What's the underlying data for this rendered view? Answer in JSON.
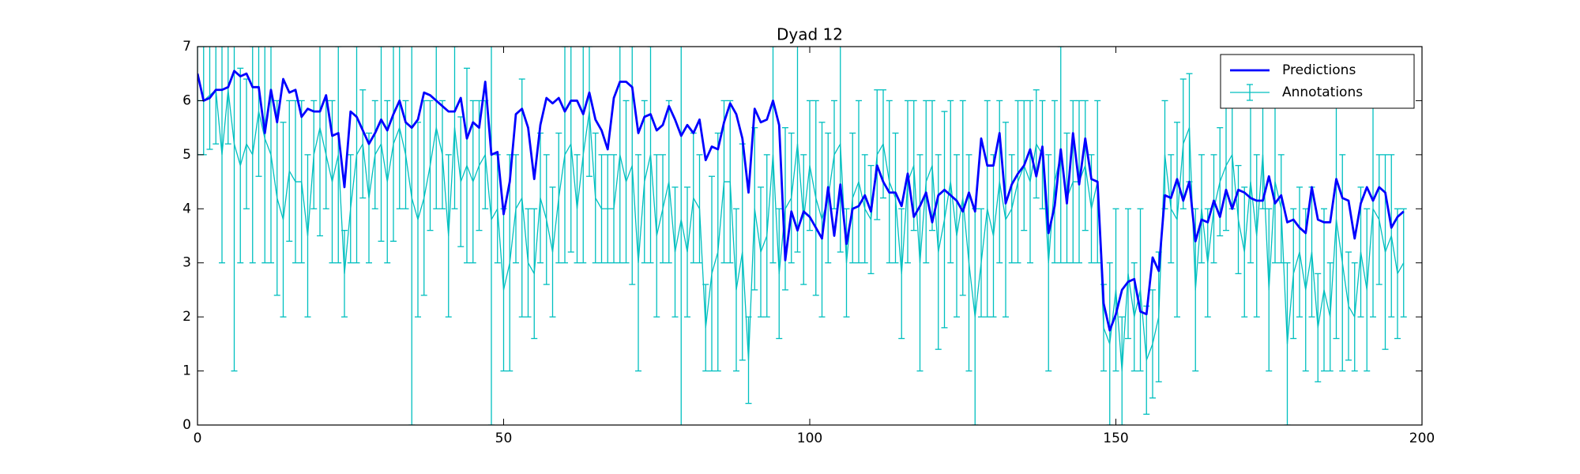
{
  "chart_data": {
    "type": "line",
    "title": "Dyad 12",
    "x": [
      0,
      1,
      2,
      3,
      4,
      5,
      6,
      7,
      8,
      9,
      10,
      11,
      12,
      13,
      14,
      15,
      16,
      17,
      18,
      19,
      20,
      21,
      22,
      23,
      24,
      25,
      26,
      27,
      28,
      29,
      30,
      31,
      32,
      33,
      34,
      35,
      36,
      37,
      38,
      39,
      40,
      41,
      42,
      43,
      44,
      45,
      46,
      47,
      48,
      49,
      50,
      51,
      52,
      53,
      54,
      55,
      56,
      57,
      58,
      59,
      60,
      61,
      62,
      63,
      64,
      65,
      66,
      67,
      68,
      69,
      70,
      71,
      72,
      73,
      74,
      75,
      76,
      77,
      78,
      79,
      80,
      81,
      82,
      83,
      84,
      85,
      86,
      87,
      88,
      89,
      90,
      91,
      92,
      93,
      94,
      95,
      96,
      97,
      98,
      99,
      100,
      101,
      102,
      103,
      104,
      105,
      106,
      107,
      108,
      109,
      110,
      111,
      112,
      113,
      114,
      115,
      116,
      117,
      118,
      119,
      120,
      121,
      122,
      123,
      124,
      125,
      126,
      127,
      128,
      129,
      130,
      131,
      132,
      133,
      134,
      135,
      136,
      137,
      138,
      139,
      140,
      141,
      142,
      143,
      144,
      145,
      146,
      147,
      148,
      149,
      150,
      151,
      152,
      153,
      154,
      155,
      156,
      157,
      158,
      159,
      160,
      161,
      162,
      163,
      164,
      165,
      166,
      167,
      168,
      169,
      170,
      171,
      172,
      173,
      174,
      175,
      176,
      177,
      178,
      179,
      180,
      181,
      182,
      183,
      184,
      185,
      186,
      187,
      188,
      189,
      190,
      191,
      192,
      193,
      194,
      195,
      196,
      197
    ],
    "series": [
      {
        "name": "Predictions",
        "color": "#0000ff",
        "values": [
          6.5,
          6.0,
          6.05,
          6.2,
          6.2,
          6.25,
          6.55,
          6.45,
          6.5,
          6.25,
          6.25,
          5.4,
          6.2,
          5.6,
          6.4,
          6.15,
          6.2,
          5.7,
          5.85,
          5.8,
          5.8,
          6.1,
          5.35,
          5.4,
          4.4,
          5.8,
          5.7,
          5.45,
          5.2,
          5.4,
          5.65,
          5.45,
          5.75,
          6.0,
          5.6,
          5.5,
          5.65,
          6.15,
          6.1,
          6.0,
          5.9,
          5.8,
          5.8,
          6.05,
          5.3,
          5.6,
          5.5,
          6.35,
          5.0,
          5.05,
          3.9,
          4.5,
          5.75,
          5.85,
          5.5,
          4.55,
          5.55,
          6.05,
          5.95,
          6.05,
          5.8,
          6.0,
          6.0,
          5.75,
          6.15,
          5.65,
          5.45,
          5.1,
          6.05,
          6.35,
          6.35,
          6.25,
          5.4,
          5.7,
          5.75,
          5.45,
          5.55,
          5.9,
          5.65,
          5.35,
          5.55,
          5.4,
          5.65,
          4.9,
          5.15,
          5.1,
          5.6,
          5.95,
          5.75,
          5.3,
          4.3,
          5.85,
          5.6,
          5.65,
          6.0,
          5.55,
          3.05,
          3.95,
          3.6,
          3.95,
          3.85,
          3.65,
          3.45,
          4.4,
          3.5,
          4.45,
          3.35,
          4.0,
          4.05,
          4.25,
          3.95,
          4.8,
          4.5,
          4.3,
          4.3,
          4.05,
          4.65,
          3.85,
          4.05,
          4.3,
          3.75,
          4.25,
          4.35,
          4.25,
          4.15,
          3.95,
          4.3,
          3.95,
          5.3,
          4.8,
          4.8,
          5.4,
          4.1,
          4.45,
          4.65,
          4.8,
          5.1,
          4.6,
          5.15,
          3.55,
          4.05,
          5.1,
          4.1,
          5.4,
          4.45,
          5.3,
          4.55,
          4.5,
          2.25,
          1.75,
          2.05,
          2.5,
          2.65,
          2.7,
          2.1,
          2.05,
          3.1,
          2.85,
          4.25,
          4.2,
          4.55,
          4.15,
          4.5,
          3.4,
          3.8,
          3.75,
          4.15,
          3.85,
          4.35,
          4.0,
          4.35,
          4.3,
          4.2,
          4.15,
          4.15,
          4.6,
          4.1,
          4.25,
          3.75,
          3.8,
          3.65,
          3.55,
          4.4,
          3.8,
          3.75,
          3.75,
          4.55,
          4.2,
          4.15,
          3.45,
          4.1,
          4.4,
          4.15,
          4.4,
          4.3,
          3.65,
          3.85,
          3.95
        ]
      },
      {
        "name": "Annotations",
        "color": "#00bfbf",
        "values": [
          6,
          6,
          6.1,
          6.2,
          5,
          6.2,
          5.2,
          4.8,
          5.2,
          5,
          5.8,
          5.3,
          5,
          4.2,
          3.8,
          4.7,
          4.5,
          4.5,
          3.5,
          5,
          5.5,
          5,
          4.5,
          5,
          2.8,
          4,
          5,
          5.2,
          4.2,
          5,
          5.2,
          4.5,
          5.2,
          5.5,
          5,
          4.2,
          3.8,
          4.2,
          4.8,
          5.5,
          5,
          3.5,
          5.5,
          4.5,
          4.8,
          4.5,
          4.8,
          5,
          3.8,
          4,
          2.5,
          3,
          4,
          4.2,
          3,
          2.8,
          4.2,
          3.8,
          3.2,
          4.2,
          5,
          5.2,
          4,
          5,
          5.8,
          4.2,
          4,
          4,
          4,
          5,
          4.5,
          4.8,
          3,
          4.5,
          5,
          3.5,
          4,
          4.5,
          3.2,
          3.8,
          3.2,
          4.2,
          4,
          1.8,
          2.8,
          3.2,
          4.5,
          4.5,
          2.5,
          3.2,
          1.2,
          4,
          3.2,
          3.5,
          5,
          2.8,
          4,
          4.2,
          5.2,
          3.8,
          4.8,
          4.2,
          3.8,
          4.2,
          5,
          5.2,
          3,
          4.2,
          4.5,
          4,
          3.8,
          5,
          5.2,
          4.5,
          4.2,
          2.8,
          4.5,
          4.8,
          3,
          4.5,
          4.8,
          3.2,
          3.8,
          4.5,
          3.5,
          4.2,
          3,
          2,
          3,
          4,
          3.5,
          4.5,
          3.8,
          4,
          4.5,
          4.8,
          4.5,
          5.2,
          5,
          3,
          4.5,
          5,
          4.2,
          4.5,
          4.5,
          4.8,
          4,
          4.5,
          1.8,
          1.5,
          2.5,
          1,
          2.8,
          2,
          2.5,
          1.2,
          1.5,
          2,
          5,
          4,
          3.8,
          5.2,
          5.5,
          2.5,
          4,
          3,
          4,
          4.5,
          4.8,
          5,
          3.8,
          3.2,
          4.5,
          3.5,
          5,
          2.5,
          4.5,
          4,
          1.5,
          2.8,
          3.2,
          2.5,
          3.2,
          1.8,
          2.5,
          2,
          3.8,
          3,
          2.2,
          2,
          3.2,
          2.5,
          4,
          3.8,
          3.2,
          3.5,
          2.8,
          3
        ],
        "errors": [
          1,
          1,
          1,
          1,
          2,
          1,
          4.2,
          1.8,
          1.2,
          2,
          1.2,
          2.3,
          2,
          1.8,
          1.8,
          1.3,
          1.5,
          1.5,
          1.5,
          1,
          2,
          1,
          1.5,
          2,
          0.8,
          1,
          2,
          1,
          1.2,
          1,
          1.8,
          1.5,
          1.8,
          1.5,
          1,
          4.2,
          1.8,
          1.8,
          1.2,
          1.5,
          1,
          1.5,
          1.5,
          1.2,
          1.8,
          1.5,
          1.2,
          1,
          3.8,
          1,
          1.5,
          2,
          1,
          2.2,
          1,
          1.2,
          1.2,
          1.2,
          1.2,
          1.2,
          2,
          2,
          1,
          2,
          1.2,
          1.2,
          1,
          1,
          1,
          2,
          1.5,
          2.2,
          2,
          1.5,
          2,
          1.5,
          1,
          1.5,
          1.2,
          4,
          1.2,
          1.2,
          1,
          0.8,
          1.8,
          2.2,
          1.5,
          1.5,
          1.5,
          2,
          0.8,
          1.5,
          1.2,
          1.5,
          2,
          1.2,
          1.5,
          1.2,
          2,
          1.2,
          1.2,
          1.8,
          1.8,
          1.2,
          1,
          2,
          1,
          1.2,
          1.5,
          1,
          1,
          1.2,
          1,
          1.5,
          1.2,
          1.2,
          1.5,
          1.2,
          2,
          1.5,
          1.2,
          1.8,
          2,
          1.5,
          1.5,
          1.8,
          2,
          2,
          1,
          2,
          1.5,
          1.5,
          1.8,
          1,
          1.5,
          1.2,
          1.5,
          1,
          1,
          2,
          1.5,
          2,
          1.2,
          1.5,
          1.5,
          1.2,
          1,
          1.5,
          0.8,
          1.5,
          1.5,
          1,
          1.2,
          1,
          1.5,
          1,
          1,
          1.2,
          1,
          1,
          1.8,
          1.2,
          1,
          1.5,
          1,
          1,
          1,
          1,
          1.2,
          1,
          1,
          1.2,
          1.5,
          1.5,
          1,
          1.5,
          1.5,
          1,
          1.5,
          1.2,
          1.2,
          1.5,
          1.2,
          1,
          1.5,
          1,
          2.2,
          2,
          1,
          1,
          1.2,
          1.5,
          2,
          1.2,
          1.8,
          1.5,
          1.2,
          1
        ]
      }
    ],
    "xlim": [
      0,
      200
    ],
    "xticks": [
      0,
      50,
      100,
      150,
      200
    ],
    "ylim": [
      0,
      7
    ],
    "yticks": [
      0,
      1,
      2,
      3,
      4,
      5,
      6,
      7
    ],
    "legend": "upper right"
  }
}
